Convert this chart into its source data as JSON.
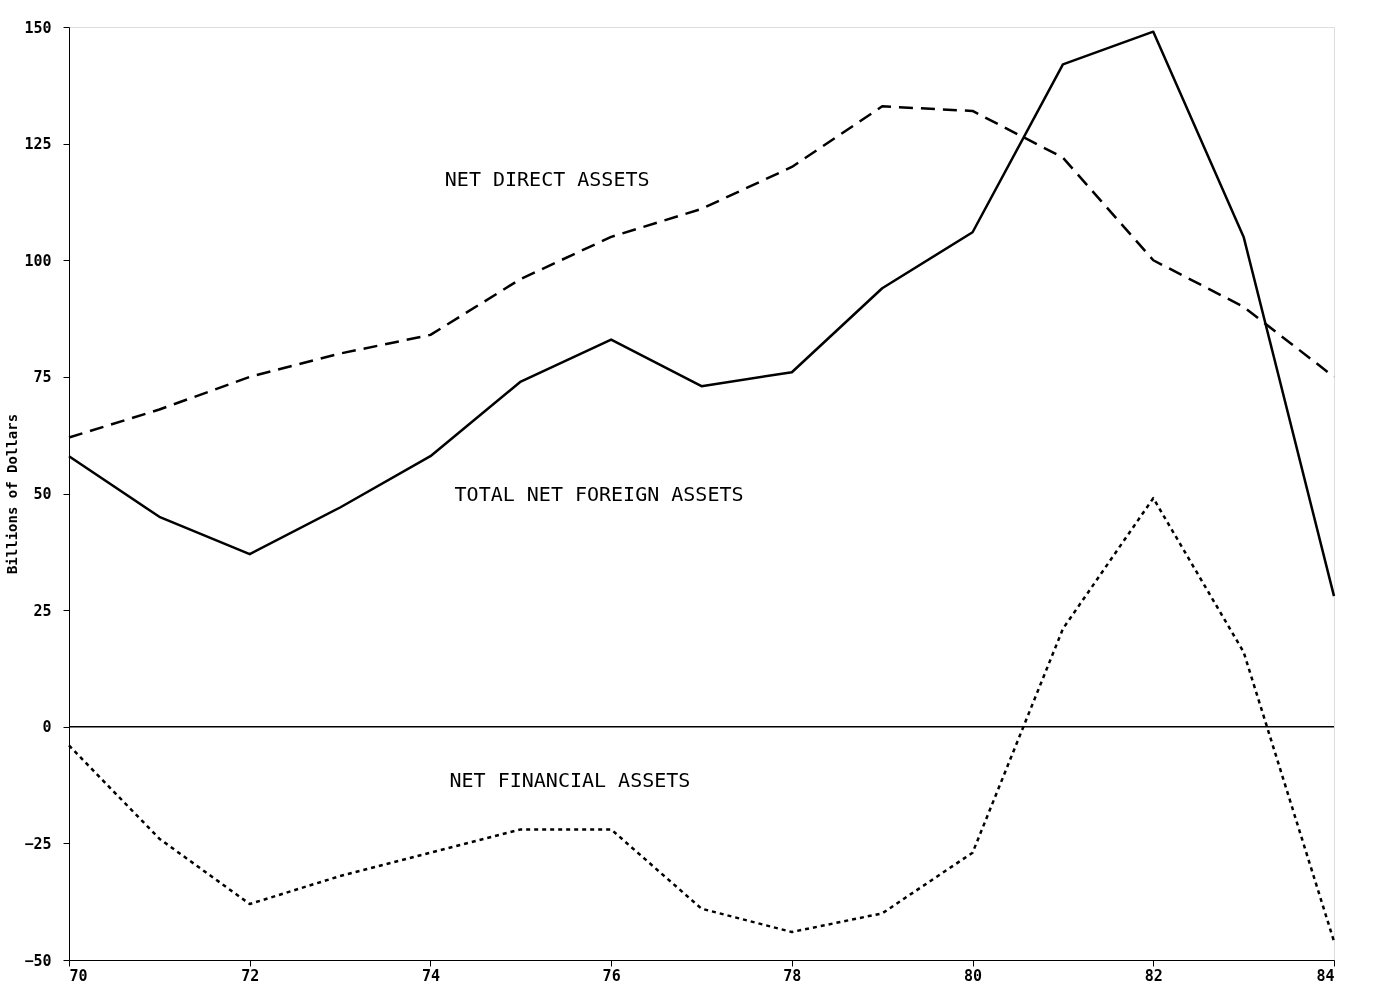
{
  "chart_data": {
    "type": "line",
    "ylabel": "Billions of Dollars",
    "x": [
      70,
      71,
      72,
      73,
      74,
      75,
      76,
      77,
      78,
      79,
      80,
      81,
      82,
      83,
      84
    ],
    "xlim": [
      70,
      84
    ],
    "xticks": [
      70,
      72,
      74,
      76,
      78,
      80,
      82,
      84
    ],
    "ylim": [
      -50,
      150
    ],
    "yticks": [
      -50,
      -25,
      0,
      25,
      50,
      75,
      100,
      125,
      150
    ],
    "marker": "none",
    "series": [
      {
        "color": "#000000",
        "line_style": "solid",
        "values": [
          58,
          45,
          37,
          47,
          58,
          74,
          83,
          73,
          76,
          94,
          106,
          142,
          149,
          105,
          28
        ]
      },
      {
        "color": "#000000",
        "line_style": "dashed",
        "values": [
          62,
          68,
          75,
          80,
          84,
          96,
          105,
          111,
          120,
          133,
          132,
          122,
          100,
          90,
          75
        ]
      },
      {
        "color": "#000000",
        "line_style": "dotted",
        "values": [
          -4,
          -24,
          -38,
          -32,
          -27,
          -22,
          -22,
          -39,
          -44,
          -40,
          -27,
          21,
          49,
          16,
          -46
        ]
      }
    ],
    "ref_lines": [
      {
        "axis": "y",
        "value": 0,
        "color": "#000000",
        "line_style": "solid"
      }
    ],
    "annotations": [
      "NET DIRECT ASSETS",
      "TOTAL NET FOREIGN ASSETS",
      "NET FINANCIAL ASSETS"
    ]
  }
}
